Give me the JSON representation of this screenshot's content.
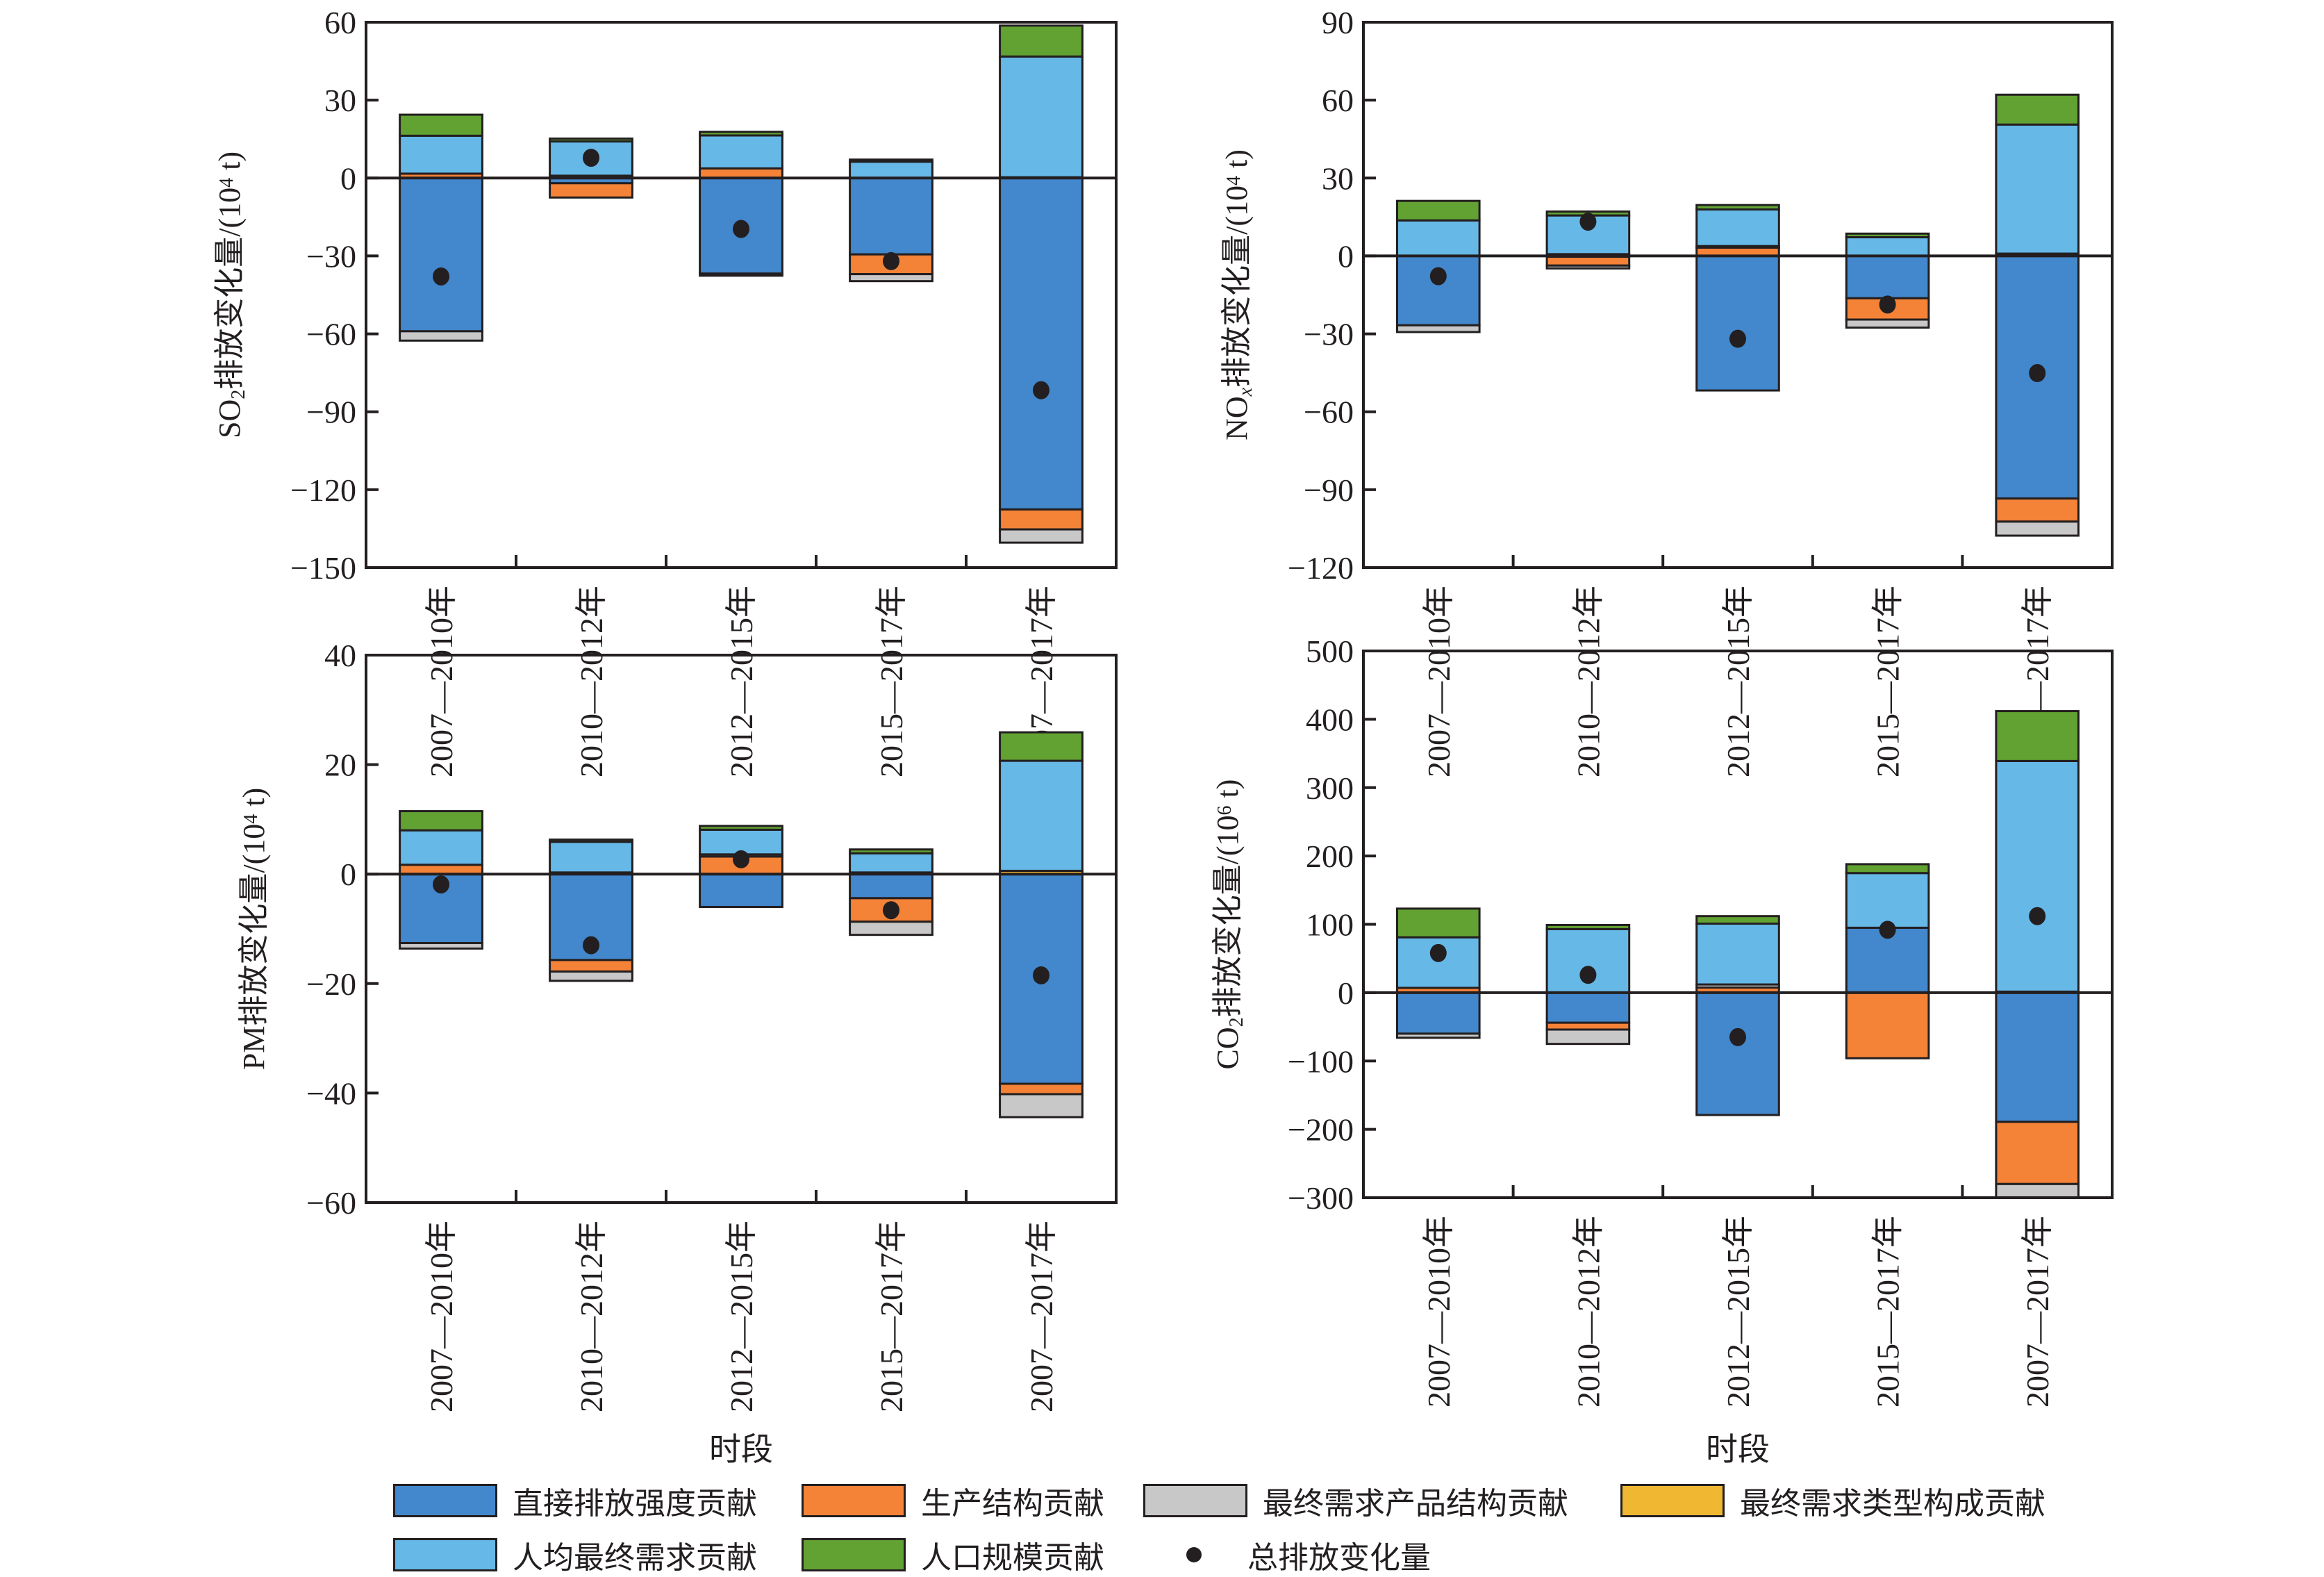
{
  "figure": {
    "legend": {
      "items": [
        {
          "key": "direct",
          "label": "直接排放强度贡献",
          "color": "#4387cc",
          "type": "bar"
        },
        {
          "key": "production",
          "label": "生产结构贡献",
          "color": "#f48237",
          "type": "bar"
        },
        {
          "key": "product_structure",
          "label": "最终需求产品结构贡献",
          "color": "#c8c8c8",
          "type": "bar"
        },
        {
          "key": "demand_type",
          "label": "最终需求类型构成贡献",
          "color": "#f0b732",
          "type": "bar"
        },
        {
          "key": "per_capita",
          "label": "人均最终需求贡献",
          "color": "#66b8e7",
          "type": "bar"
        },
        {
          "key": "population",
          "label": "人口规模贡献",
          "color": "#62a232",
          "type": "bar"
        },
        {
          "key": "total",
          "label": "总排放变化量",
          "color": "#231f20",
          "type": "dot"
        }
      ]
    }
  },
  "chart_data": [
    {
      "id": "so2",
      "type": "bar",
      "stacked": true,
      "title": "",
      "ylabel_main": "SO",
      "ylabel_sub": "2",
      "ylabel_rest": "排放变化量/(10",
      "ylabel_sup": "4",
      "ylabel_end": " t)",
      "xlabel": "",
      "ylim": [
        -150,
        60
      ],
      "yticks": [
        60,
        30,
        0,
        -30,
        -60,
        -90,
        -120,
        -150
      ],
      "yticklabels": [
        "60",
        "30",
        "0",
        "−30",
        "−60",
        "−90",
        "−120",
        "−150"
      ],
      "categories": [
        "2007—2010年",
        "2010—2012年",
        "2012—2015年",
        "2015—2017年",
        "2007—2017年"
      ],
      "show_xticklabels": false,
      "grid": false,
      "series": [
        {
          "name": "直接排放强度贡献",
          "values": [
            -59.0,
            -2.0,
            -36.8,
            -29.4,
            -127.6
          ]
        },
        {
          "name": "生产结构贡献",
          "values": [
            1.7,
            -5.5,
            3.7,
            -7.6,
            -7.7
          ]
        },
        {
          "name": "最终需求产品结构贡献",
          "values": [
            -3.6,
            0.9,
            -0.8,
            -2.7,
            -5.1
          ]
        },
        {
          "name": "最终需求类型构成贡献",
          "values": [
            0.0,
            0.0,
            0.0,
            0.0,
            0.3
          ]
        },
        {
          "name": "人均最终需求贡献",
          "values": [
            14.6,
            13.2,
            12.7,
            6.3,
            46.5
          ]
        },
        {
          "name": "人口规模贡献",
          "values": [
            8.1,
            1.1,
            1.4,
            0.8,
            11.9
          ]
        }
      ],
      "total": [
        -37.9,
        7.8,
        -19.6,
        -32.0,
        -81.7
      ]
    },
    {
      "id": "nox",
      "type": "bar",
      "stacked": true,
      "title": "",
      "ylabel_main": "NO",
      "ylabel_sub": "x",
      "ylabel_rest": "排放变化量/(10",
      "ylabel_sup": "4",
      "ylabel_end": " t)",
      "xlabel": "",
      "ylim": [
        -120,
        90
      ],
      "yticks": [
        90,
        60,
        30,
        0,
        -30,
        -60,
        -90,
        -120
      ],
      "yticklabels": [
        "90",
        "60",
        "30",
        "0",
        "−30",
        "−60",
        "−90",
        "−120"
      ],
      "categories": [
        "2007—2010年",
        "2010—2012年",
        "2012—2015年",
        "2015—2017年",
        "2007—2017年"
      ],
      "show_xticklabels": false,
      "grid": false,
      "series": [
        {
          "name": "直接排放强度贡献",
          "values": [
            -26.7,
            -0.3,
            -51.8,
            -16.3,
            -93.4
          ]
        },
        {
          "name": "生产结构贡献",
          "values": [
            0.0,
            -3.4,
            3.2,
            -8.2,
            -8.9
          ]
        },
        {
          "name": "最终需求产品结构贡献",
          "values": [
            -2.6,
            -1.1,
            0.6,
            -3.1,
            -5.4
          ]
        },
        {
          "name": "最终需求类型构成贡献",
          "values": [
            0.0,
            0.7,
            0.0,
            0.0,
            0.9
          ]
        },
        {
          "name": "人均最终需求贡献",
          "values": [
            13.7,
            14.9,
            14.1,
            7.2,
            49.7
          ]
        },
        {
          "name": "人口规模贡献",
          "values": [
            7.5,
            1.5,
            1.7,
            1.4,
            11.5
          ]
        }
      ],
      "total": [
        -7.8,
        13.2,
        -31.9,
        -18.7,
        -45.1
      ]
    },
    {
      "id": "pm",
      "type": "bar",
      "stacked": true,
      "title": "",
      "ylabel_main": "PM",
      "ylabel_sub": "",
      "ylabel_rest": "排放变化量/(10",
      "ylabel_sup": "4",
      "ylabel_end": " t)",
      "xlabel": "时段",
      "ylim": [
        -60,
        40
      ],
      "yticks": [
        40,
        20,
        0,
        -20,
        -40,
        -60
      ],
      "yticklabels": [
        "40",
        "20",
        "0",
        "−20",
        "−40",
        "−60"
      ],
      "categories": [
        "2007—2010年",
        "2010—2012年",
        "2012—2015年",
        "2015—2017年",
        "2007—2017年"
      ],
      "show_xticklabels": true,
      "grid": false,
      "series": [
        {
          "name": "直接排放强度贡献",
          "values": [
            -12.6,
            -15.7,
            -6.0,
            -4.4,
            -38.3
          ]
        },
        {
          "name": "生产结构贡献",
          "values": [
            1.7,
            -2.1,
            3.2,
            -4.3,
            -1.9
          ]
        },
        {
          "name": "最终需求产品结构贡献",
          "values": [
            -1.0,
            -1.7,
            0.4,
            -2.4,
            -4.2
          ]
        },
        {
          "name": "最终需求类型构成贡献",
          "values": [
            0.0,
            0.3,
            0.0,
            0.3,
            0.6
          ]
        },
        {
          "name": "人均最终需求贡献",
          "values": [
            6.3,
            5.6,
            4.5,
            3.5,
            20.1
          ]
        },
        {
          "name": "人口规模贡献",
          "values": [
            3.5,
            0.4,
            0.7,
            0.7,
            5.2
          ]
        }
      ],
      "total": [
        -1.9,
        -13.0,
        2.7,
        -6.6,
        -18.5
      ]
    },
    {
      "id": "co2",
      "type": "bar",
      "stacked": true,
      "title": "",
      "ylabel_main": "CO",
      "ylabel_sub": "2",
      "ylabel_rest": "排放变化量/(10",
      "ylabel_sup": "6",
      "ylabel_end": " t)",
      "xlabel": "时段",
      "ylim": [
        -300,
        500
      ],
      "yticks": [
        500,
        400,
        300,
        200,
        100,
        0,
        -100,
        -200,
        -300
      ],
      "yticklabels": [
        "500",
        "400",
        "300",
        "200",
        "100",
        "0",
        "−100",
        "−200",
        "−300"
      ],
      "categories": [
        "2007—2010年",
        "2010—2012年",
        "2012—2015年",
        "2015—2017年",
        "2007—2017年"
      ],
      "show_xticklabels": true,
      "grid": false,
      "series": [
        {
          "name": "直接排放强度贡献",
          "values": [
            -60,
            -44,
            -179,
            95,
            -189
          ]
        },
        {
          "name": "生产结构贡献",
          "values": [
            7,
            -10,
            7.5,
            -96,
            -91
          ]
        },
        {
          "name": "最终需求产品结构贡献",
          "values": [
            -6,
            -21,
            4.5,
            0,
            -21
          ]
        },
        {
          "name": "最终需求类型构成贡献",
          "values": [
            0,
            0,
            0,
            0,
            1.5
          ]
        },
        {
          "name": "人均最终需求贡献",
          "values": [
            74,
            93,
            89,
            80,
            337.5
          ]
        },
        {
          "name": "人口规模贡献",
          "values": [
            42,
            6,
            11,
            13,
            73
          ]
        }
      ],
      "total": [
        58,
        26,
        -65,
        92,
        112
      ]
    }
  ]
}
